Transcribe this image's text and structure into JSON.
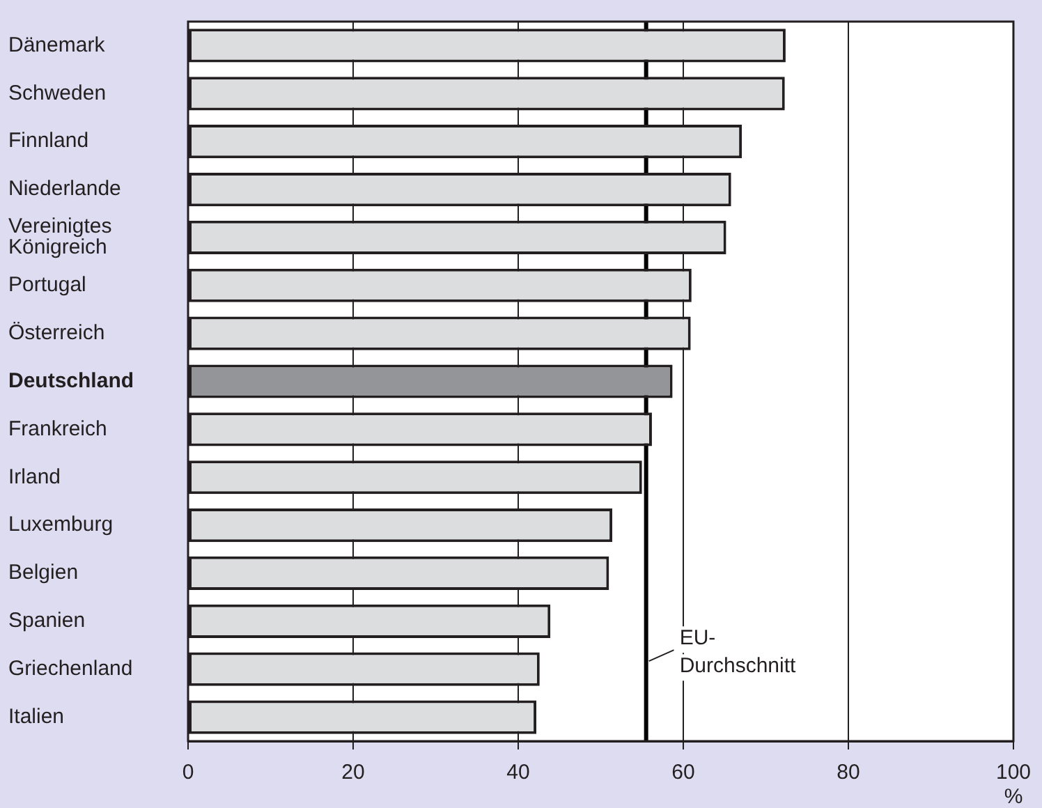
{
  "chart_data": {
    "type": "bar",
    "orientation": "horizontal",
    "xlabel": "%",
    "categories": [
      "Dänemark",
      "Schweden",
      "Finnland",
      "Niederlande",
      "Vereinigtes Königreich",
      "Portugal",
      "Österreich",
      "Deutschland",
      "Frankreich",
      "Irland",
      "Luxemburg",
      "Belgien",
      "Spanien",
      "Griechenland",
      "Italien"
    ],
    "values": [
      72.4,
      72.3,
      67.1,
      65.8,
      65.2,
      61.0,
      60.9,
      58.7,
      56.2,
      55.0,
      51.4,
      51.0,
      43.9,
      42.6,
      42.2
    ],
    "colors": [
      "#dcdddf",
      "#dcdddf",
      "#dcdddf",
      "#dcdddf",
      "#dcdddf",
      "#dcdddf",
      "#dcdddf",
      "#939598",
      "#dcdddf",
      "#dcdddf",
      "#dcdddf",
      "#dcdddf",
      "#dcdddf",
      "#dcdddf",
      "#dcdddf"
    ],
    "xlim": [
      0,
      100
    ],
    "xticks": [
      0,
      20,
      40,
      60,
      80,
      100
    ],
    "grid": "x",
    "legend": false,
    "ref_lines": [
      {
        "axis": "x",
        "value": 55.5,
        "label": "EU-Durchschnitt",
        "color": "#000000"
      }
    ]
  }
}
